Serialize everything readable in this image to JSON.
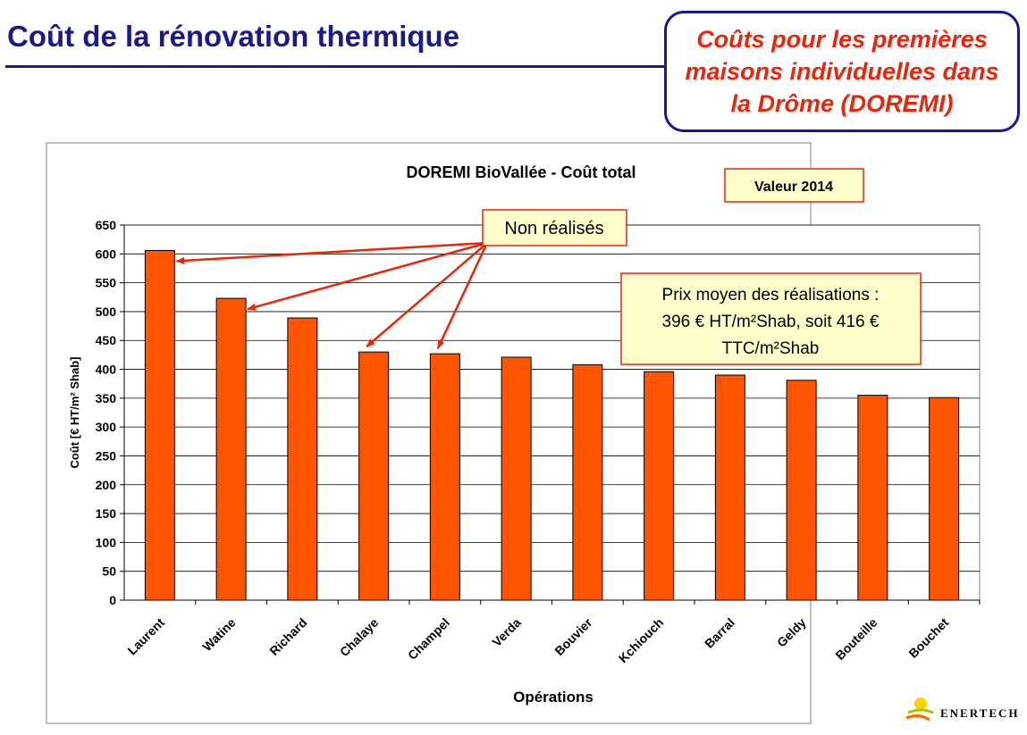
{
  "slide": {
    "title": "Coût de la rénovation thermique",
    "callout": "Coûts pour les premières maisons individuelles dans la Drôme (DOREMI)"
  },
  "logo": {
    "text": "ENERTECH"
  },
  "colors": {
    "bar": "#ff5500",
    "title": "#1a1a8c",
    "callout_text": "#e8260b",
    "arrow": "#e8260b",
    "note_fill": "#ffffcc"
  },
  "chart_data": {
    "type": "bar",
    "title": "DOREMI BioVallée - Coût total",
    "xlabel": "Opérations",
    "ylabel": "Coût [€ HT/m² Shab]",
    "ylim": [
      0,
      650
    ],
    "ytick_step": 50,
    "grid": true,
    "categories": [
      "Laurent",
      "Watine",
      "Richard",
      "Chalaye",
      "Champel",
      "Verda",
      "Bouvier",
      "Kchiouch",
      "Barral",
      "Geldy",
      "Bouteille",
      "Bouchet"
    ],
    "values": [
      606,
      523,
      489,
      430,
      427,
      421,
      408,
      396,
      390,
      381,
      355,
      351
    ],
    "annotations": {
      "year_label": "Valeur 2014",
      "not_realized_label": "Non réalisés",
      "not_realized_categories": [
        "Laurent",
        "Watine",
        "Chalaye",
        "Champel"
      ],
      "average_note": [
        "Prix moyen des réalisations :",
        "396 € HT/m²Shab, soit 416 €",
        "TTC/m²Shab"
      ]
    }
  }
}
